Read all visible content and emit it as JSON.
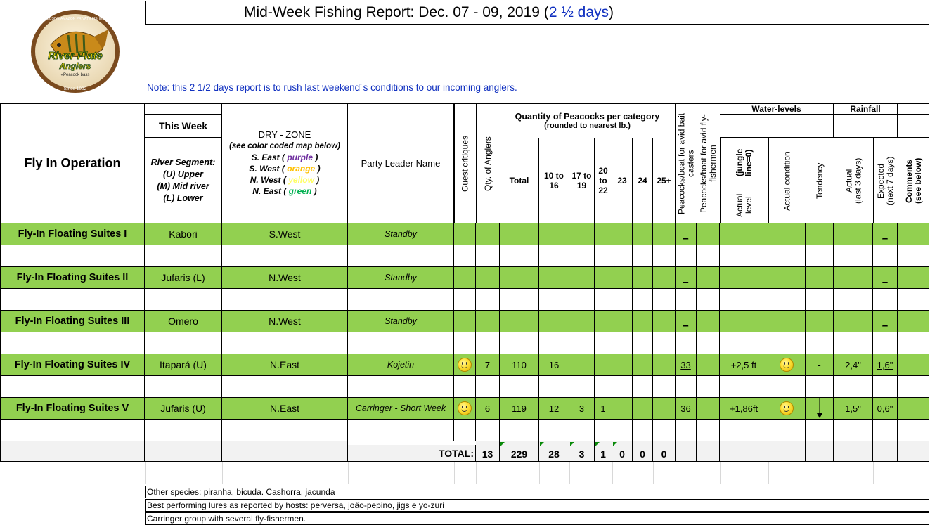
{
  "title": {
    "main": "Mid-Week Fishing Report: Dec. 07 - 09, 2019 (",
    "highlight": "2 ½ days",
    "close": ")"
  },
  "note": "Note:  this 2 1/2 days report is to rush last weekend´s conditions to our incoming anglers.",
  "logo": {
    "top": "EXCLUSIVE AMAZON PRIVATE FISHERIES",
    "name1": "River Plate",
    "name2": "Anglers",
    "tag": "«Peacock bass",
    "since": "Since 1992"
  },
  "headers": {
    "operation": "Fly In Operation",
    "this_week": "This Week",
    "river_segment": [
      "River Segment:",
      "(U) Upper",
      "(M) Mid river",
      "(L) Lower"
    ],
    "dry_zone": "DRY - ZONE",
    "color_map": "(see color coded map below)",
    "zones": [
      {
        "label": "S. East (",
        "color_name": "purple",
        "color": "#7030a0"
      },
      {
        "label": "S. West (",
        "color_name": "orange",
        "color": "#ffc000"
      },
      {
        "label": "N. West (",
        "color_name": "yellow",
        "color": "#ffff66"
      },
      {
        "label": "N. East (",
        "color_name": "green",
        "color": "#00b050"
      }
    ],
    "zone_close": " )",
    "party_leader": "Party Leader Name",
    "guest_critiques": "Guest critiques",
    "qty_anglers": "Qty. of Anglers",
    "quantity": "Quantity of Peacocks per category",
    "rounded": "(rounded to nearest lb.)",
    "cats": [
      "Total",
      "10 to 16",
      "17 to 19",
      "20 to 22",
      "23",
      "24",
      "25+"
    ],
    "bait": "Peacocks/boat for avid bait casters",
    "fly": "Peacocks/boat for avid fly-fishermen",
    "water_levels": "Water-levels",
    "actual_level": "Actual level",
    "jungle": "(jungle line=0)",
    "actual_condition": "Actual condition",
    "tendency": "Tendency",
    "rainfall": "Rainfall",
    "rain_actual": "Actual",
    "rain_actual_sub": "(last 3 days)",
    "rain_expected": "Expected",
    "rain_expected_sub": "(next 7 days)",
    "comments": "Comments",
    "comments_sub": "(see below)"
  },
  "rows": [
    {
      "name": "Fly-In Floating Suites I",
      "segment": "Kabori",
      "zone": "S.West",
      "leader": "Standby",
      "smiley": false,
      "qty": "",
      "total": "",
      "c1": "",
      "c2": "",
      "c3": "",
      "c4": "",
      "c5": "",
      "c6": "",
      "bait": "_",
      "level": "",
      "cond": false,
      "tend": "",
      "arrow": false,
      "actual": "",
      "expected": "_"
    },
    {
      "name": "Fly-In Floating Suites II",
      "segment": "Jufaris (L)",
      "zone": "N.West",
      "leader": "Standby",
      "smiley": false,
      "qty": "",
      "total": "",
      "c1": "",
      "c2": "",
      "c3": "",
      "c4": "",
      "c5": "",
      "c6": "",
      "bait": "_",
      "level": "",
      "cond": false,
      "tend": "",
      "arrow": false,
      "actual": "",
      "expected": "_"
    },
    {
      "name": "Fly-In Floating Suites III",
      "segment": "Omero",
      "zone": "N.West",
      "leader": "Standby",
      "smiley": false,
      "qty": "",
      "total": "",
      "c1": "",
      "c2": "",
      "c3": "",
      "c4": "",
      "c5": "",
      "c6": "",
      "bait": "_",
      "level": "",
      "cond": false,
      "tend": "",
      "arrow": false,
      "actual": "",
      "expected": "_"
    },
    {
      "name": "Fly-In Floating Suites IV",
      "segment": "Itapará (U)",
      "zone": "N.East",
      "leader": "Kojetin",
      "smiley": true,
      "qty": "7",
      "total": "110",
      "c1": "16",
      "c2": "",
      "c3": "",
      "c4": "",
      "c5": "",
      "c6": "",
      "bait": "33",
      "level": "+2,5 ft",
      "cond": true,
      "tend": "-",
      "arrow": false,
      "actual": "2,4\"",
      "expected": "1,6\""
    },
    {
      "name": "Fly-In Floating Suites V",
      "segment": "Jufaris (U)",
      "zone": "N.East",
      "leader": "Carringer - Short Week",
      "smiley": true,
      "qty": "6",
      "total": "119",
      "c1": "12",
      "c2": "3",
      "c3": "1",
      "c4": "",
      "c5": "",
      "c6": "",
      "bait": "36",
      "level": "+1,86ft",
      "cond": true,
      "tend": "",
      "arrow": true,
      "actual": "1,5\"",
      "expected": "0,6\""
    }
  ],
  "totals": {
    "label": "TOTAL:",
    "qty": "13",
    "total": "229",
    "c1": "28",
    "c2": "3",
    "c3": "1",
    "c4": "0",
    "c5": "0",
    "c6": "0"
  },
  "footer": [
    "Other species: piranha, bicuda. Cashorra, jacunda",
    "Best performing lures as reported by hosts:  perversa, joão-pepino, jigs e yo-zuri",
    "Carringer group with several fly-fishermen."
  ]
}
